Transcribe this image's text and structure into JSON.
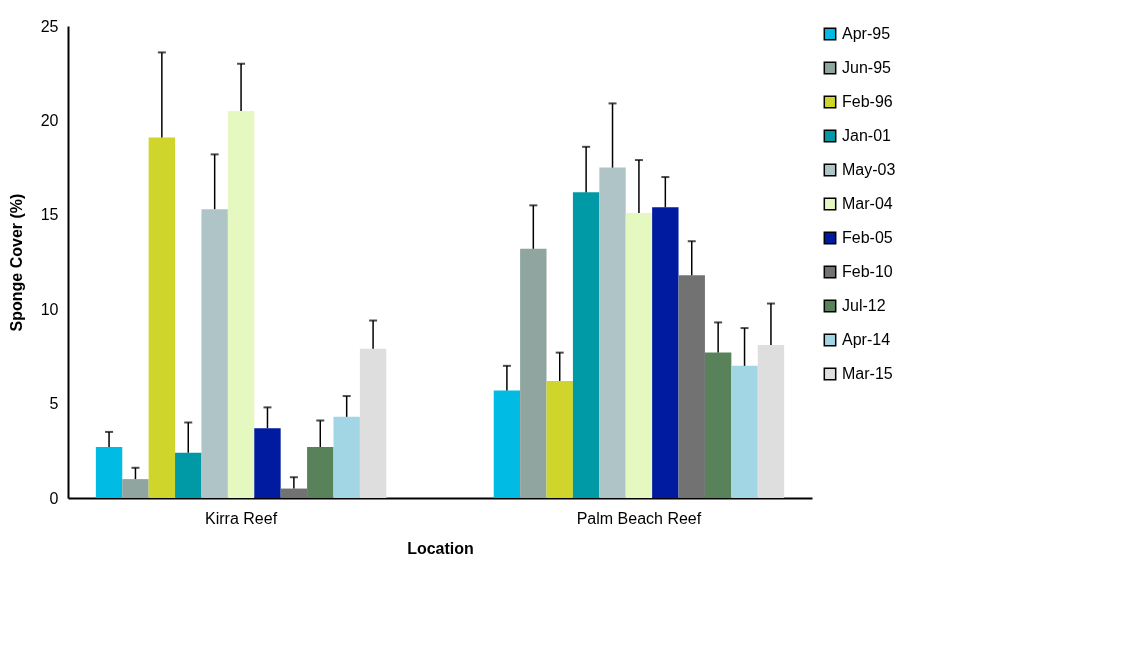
{
  "chart_data": {
    "type": "bar",
    "xlabel": "Location",
    "ylabel": "Sponge Cover (%)",
    "categories": [
      "Kirra Reef",
      "Palm Beach Reef"
    ],
    "ylim": [
      0,
      25
    ],
    "yticks": [
      0,
      5,
      10,
      15,
      20,
      25
    ],
    "grid": false,
    "legend": "right",
    "series": [
      {
        "name": "Apr-95",
        "color": "#00bce4",
        "values": [
          2.7,
          5.7
        ],
        "errors": [
          [
            2.7,
            3.5
          ],
          [
            5.7,
            7.0
          ]
        ]
      },
      {
        "name": "Jun-95",
        "color": "#90a4a0",
        "values": [
          1.0,
          13.2
        ],
        "errors": [
          [
            1.0,
            1.6
          ],
          [
            13.2,
            15.5
          ]
        ]
      },
      {
        "name": "Feb-96",
        "color": "#cfd52b",
        "values": [
          19.1,
          6.2
        ],
        "errors": [
          [
            19.1,
            23.6
          ],
          [
            6.2,
            7.7
          ]
        ]
      },
      {
        "name": "Jan-01",
        "color": "#0099a6",
        "values": [
          2.4,
          16.2
        ],
        "errors": [
          [
            2.4,
            4.0
          ],
          [
            16.2,
            18.6
          ]
        ]
      },
      {
        "name": "May-03",
        "color": "#afc4c7",
        "values": [
          15.3,
          17.5
        ],
        "errors": [
          [
            15.3,
            18.2
          ],
          [
            17.5,
            20.9
          ]
        ]
      },
      {
        "name": "Mar-04",
        "color": "#e4f8bf",
        "values": [
          20.5,
          15.1
        ],
        "errors": [
          [
            20.5,
            23.0
          ],
          [
            15.1,
            17.9
          ]
        ]
      },
      {
        "name": "Feb-05",
        "color": "#001ba0",
        "values": [
          3.7,
          15.4
        ],
        "errors": [
          [
            3.7,
            4.8
          ],
          [
            15.4,
            17.0
          ]
        ]
      },
      {
        "name": "Feb-10",
        "color": "#727272",
        "values": [
          0.5,
          11.8
        ],
        "errors": [
          [
            0.5,
            1.1
          ],
          [
            11.8,
            13.6
          ]
        ]
      },
      {
        "name": "Jul-12",
        "color": "#58835a",
        "values": [
          2.7,
          7.7
        ],
        "errors": [
          [
            2.7,
            4.1
          ],
          [
            7.7,
            9.3
          ]
        ]
      },
      {
        "name": "Apr-14",
        "color": "#a2d6e4",
        "values": [
          4.3,
          7.0
        ],
        "errors": [
          [
            4.3,
            5.4
          ],
          [
            7.0,
            9.0
          ]
        ]
      },
      {
        "name": "Mar-15",
        "color": "#dedede",
        "values": [
          7.9,
          8.1
        ],
        "errors": [
          [
            7.9,
            9.4
          ],
          [
            8.1,
            10.3
          ]
        ]
      }
    ]
  }
}
